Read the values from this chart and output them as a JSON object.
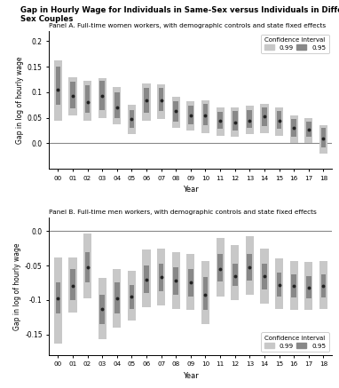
{
  "title": "Gap in Hourly Wage for Individuals in Same-Sex versus Individuals in Different-\nSex Couples",
  "panel_a_title": "Panel A. Full-time women workers, with demographic controls and state fixed effects",
  "panel_b_title": "Panel B. Full-time men workers, with demographic controls and state fixed effects",
  "years": [
    "00",
    "01",
    "02",
    "03",
    "04",
    "05",
    "06",
    "07",
    "08",
    "09",
    "10",
    "11",
    "12",
    "13",
    "14",
    "15",
    "16",
    "17",
    "18"
  ],
  "ylabel": "Gap in log of hourly wage",
  "xlabel": "Year",
  "panel_a": {
    "point": [
      0.105,
      0.093,
      0.08,
      0.093,
      0.07,
      0.048,
      0.085,
      0.085,
      0.063,
      0.055,
      0.055,
      0.044,
      0.04,
      0.045,
      0.052,
      0.045,
      0.03,
      0.027,
      0.01
    ],
    "ci95_lo": [
      0.075,
      0.068,
      0.06,
      0.065,
      0.05,
      0.03,
      0.06,
      0.063,
      0.043,
      0.038,
      0.035,
      0.028,
      0.025,
      0.03,
      0.033,
      0.028,
      0.013,
      0.013,
      -0.008
    ],
    "ci95_hi": [
      0.15,
      0.12,
      0.113,
      0.123,
      0.1,
      0.065,
      0.108,
      0.108,
      0.083,
      0.073,
      0.078,
      0.062,
      0.063,
      0.065,
      0.07,
      0.063,
      0.048,
      0.043,
      0.03
    ],
    "ci99_lo": [
      0.045,
      0.055,
      0.045,
      0.05,
      0.038,
      0.018,
      0.045,
      0.048,
      0.03,
      0.025,
      0.02,
      0.015,
      0.013,
      0.018,
      0.02,
      0.015,
      0.0,
      0.0,
      -0.02
    ],
    "ci99_hi": [
      0.163,
      0.13,
      0.123,
      0.128,
      0.11,
      0.075,
      0.118,
      0.115,
      0.092,
      0.082,
      0.085,
      0.07,
      0.07,
      0.073,
      0.078,
      0.07,
      0.055,
      0.05,
      0.035
    ],
    "ylim": [
      -0.05,
      0.22
    ],
    "yticks": [
      0.0,
      0.05,
      0.1,
      0.15,
      0.2
    ]
  },
  "panel_b": {
    "point": [
      -0.098,
      -0.08,
      -0.053,
      -0.113,
      -0.098,
      -0.095,
      -0.07,
      -0.067,
      -0.072,
      -0.075,
      -0.092,
      -0.055,
      -0.065,
      -0.053,
      -0.065,
      -0.078,
      -0.08,
      -0.082,
      -0.08
    ],
    "ci95_lo": [
      -0.12,
      -0.1,
      -0.075,
      -0.135,
      -0.12,
      -0.113,
      -0.09,
      -0.088,
      -0.092,
      -0.095,
      -0.115,
      -0.073,
      -0.08,
      -0.072,
      -0.085,
      -0.095,
      -0.097,
      -0.098,
      -0.097
    ],
    "ci95_hi": [
      -0.075,
      -0.055,
      -0.03,
      -0.092,
      -0.075,
      -0.078,
      -0.05,
      -0.048,
      -0.053,
      -0.055,
      -0.067,
      -0.033,
      -0.048,
      -0.033,
      -0.048,
      -0.06,
      -0.063,
      -0.065,
      -0.063
    ],
    "ci99_lo": [
      -0.163,
      -0.118,
      -0.098,
      -0.157,
      -0.14,
      -0.13,
      -0.11,
      -0.108,
      -0.113,
      -0.115,
      -0.135,
      -0.095,
      -0.1,
      -0.092,
      -0.105,
      -0.113,
      -0.115,
      -0.115,
      -0.113
    ],
    "ci99_hi": [
      -0.038,
      -0.038,
      -0.003,
      -0.068,
      -0.055,
      -0.058,
      -0.027,
      -0.025,
      -0.03,
      -0.033,
      -0.043,
      -0.01,
      -0.02,
      -0.008,
      -0.025,
      -0.04,
      -0.043,
      -0.045,
      -0.043
    ],
    "ylim": [
      -0.18,
      0.02
    ],
    "yticks": [
      -0.15,
      -0.1,
      -0.05,
      0.0
    ]
  },
  "color_ci99": "#c8c8c8",
  "color_ci95": "#888888",
  "color_point": "#222222",
  "color_zeroline": "#888888",
  "bar_width": 0.55
}
